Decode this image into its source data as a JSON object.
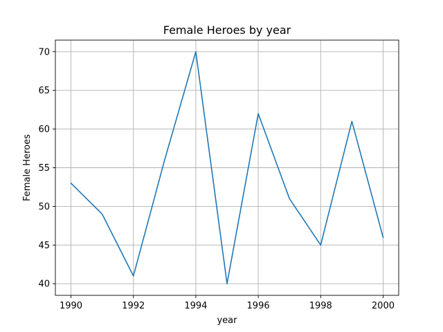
{
  "chart_data": {
    "type": "line",
    "title": "Female Heroes by year",
    "xlabel": "year",
    "ylabel": "Female Heroes",
    "x": [
      1990,
      1991,
      1992,
      1993,
      1994,
      1995,
      1996,
      1997,
      1998,
      1999,
      2000
    ],
    "series": [
      {
        "values": [
          53,
          49,
          41,
          56,
          70,
          40,
          62,
          51,
          45,
          61,
          46
        ],
        "color": "#1f77b4"
      }
    ],
    "xlim": [
      1989.5,
      2000.5
    ],
    "ylim": [
      38.5,
      71.5
    ],
    "xticks": [
      1990,
      1992,
      1994,
      1996,
      1998,
      2000
    ],
    "yticks": [
      40,
      45,
      50,
      55,
      60,
      65,
      70
    ],
    "grid": true,
    "legend": false
  }
}
